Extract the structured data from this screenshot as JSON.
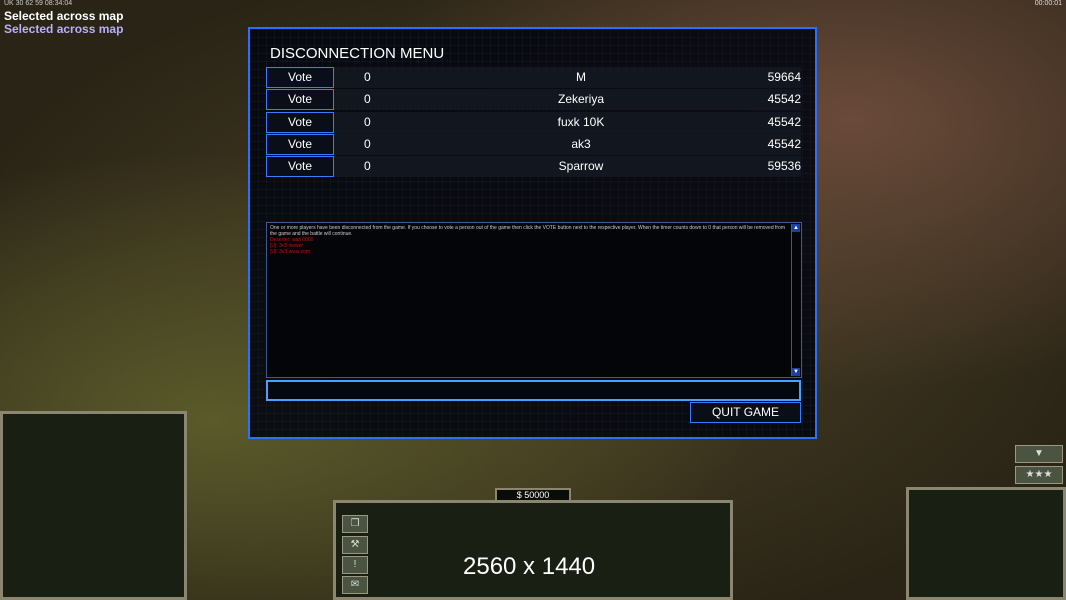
{
  "hud": {
    "stats": "UK 30 62 59 08:34:04",
    "selected_1": "Selected across map",
    "selected_2": "Selected across map",
    "game_timer": "00:00:01"
  },
  "menu": {
    "title": "DISCONNECTION MENU",
    "vote_label": "Vote",
    "players": [
      {
        "votes": "0",
        "name": "M",
        "ping": "59664"
      },
      {
        "votes": "0",
        "name": "Zekeriya",
        "ping": "45542"
      },
      {
        "votes": "0",
        "name": "fuxk 10K",
        "ping": "45542"
      },
      {
        "votes": "0",
        "name": "ak3",
        "ping": "45542"
      },
      {
        "votes": "0",
        "name": "Sparrow",
        "ping": "59536"
      }
    ],
    "message": "One or more players have been disconnected from the game. If you choose to vote a person out of the game then click the VOTE button next to the respective player. When the timer counts down to 0 that person will be removed from the game and the battle will continue.",
    "red_lines": [
      "Deserter: wait 0000",
      "[U]: 3v3 viewer",
      "[U]: 3v3 www.com"
    ],
    "chat_value": "",
    "quit_label": "QUIT GAME"
  },
  "bottom": {
    "money": "$ 50000",
    "resolution": "2560 x 1440"
  }
}
